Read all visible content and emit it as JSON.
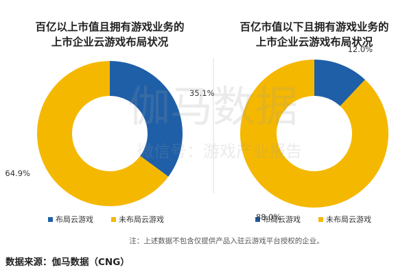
{
  "chart_data": [
    {
      "type": "pie",
      "title": [
        "百亿以上市值且拥有游戏业务的",
        "上市企业云游戏布局状况"
      ],
      "categories": [
        "布局云游戏",
        "未布局云游戏"
      ],
      "values": [
        35.1,
        64.9
      ],
      "value_labels": [
        "35.1%",
        "64.9%"
      ],
      "colors": [
        "#1f5fa8",
        "#f5b800"
      ]
    },
    {
      "type": "pie",
      "title": [
        "百亿市值以下且拥有游戏业务的",
        "上市企业云游戏布局状况"
      ],
      "categories": [
        "布局云游戏",
        "未布局云游戏"
      ],
      "values": [
        12.0,
        88.0
      ],
      "value_labels": [
        "12.0%",
        "88.0%"
      ],
      "colors": [
        "#1f5fa8",
        "#f5b800"
      ]
    }
  ],
  "watermark": [
    "伽马数据",
    "微信号：游戏产业报告"
  ],
  "note": "注：上述数据不包含仅提供产品入驻云游戏平台授权的企业。",
  "source": "数据来源：伽马数据（CNG）"
}
